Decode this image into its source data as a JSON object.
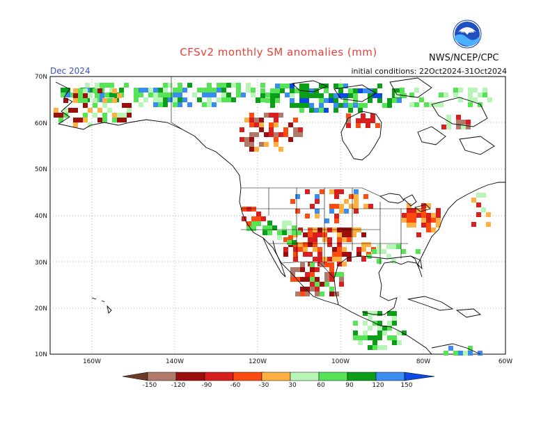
{
  "header": {
    "title": "CFSv2 monthly SM anomalies (mm)",
    "month": "Dec 2024",
    "init": "initial conditions: 22Oct2024-31Oct2024",
    "org": "NWS/NCEP/CPC",
    "logo_text": "NOAA"
  },
  "axes": {
    "lat_labels": [
      "70N",
      "60N",
      "50N",
      "40N",
      "30N",
      "20N",
      "10N"
    ],
    "lon_labels": [
      "160W",
      "140W",
      "120W",
      "100W",
      "80W",
      "60W"
    ]
  },
  "colorbar": {
    "labels": [
      "-150",
      "-120",
      "-90",
      "-60",
      "-30",
      "30",
      "60",
      "90",
      "120",
      "150"
    ],
    "colors": [
      "#6b3a2a",
      "#b07a6a",
      "#9c0e0e",
      "#d81e1e",
      "#ff4a10",
      "#ffb040",
      "#ffffff",
      "#b7f5b7",
      "#56e356",
      "#0a9e19",
      "#3a8cf0",
      "#0a4ae0"
    ]
  },
  "colors": {
    "title": "#e8403a",
    "month": "#3a50c8",
    "grid": "#999999"
  }
}
